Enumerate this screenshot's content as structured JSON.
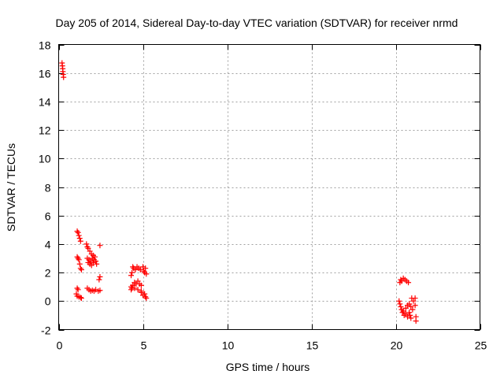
{
  "chart_data": {
    "type": "scatter",
    "title": "Day 205 of 2014, Sidereal Day-to-day VTEC variation (SDTVAR) for receiver nrmd",
    "xlabel": "GPS time / hours",
    "ylabel": "SDTVAR / TECUs",
    "xlim": [
      0,
      25
    ],
    "ylim": [
      -2,
      18
    ],
    "xticks": [
      0,
      5,
      10,
      15,
      20,
      25
    ],
    "yticks": [
      -2,
      0,
      2,
      4,
      6,
      8,
      10,
      12,
      14,
      16,
      18
    ],
    "grid": true,
    "marker": "plus",
    "color": "#ff0000",
    "series": [
      {
        "name": "SDTVAR",
        "points": [
          [
            0.2,
            16.7
          ],
          [
            0.22,
            16.5
          ],
          [
            0.24,
            16.3
          ],
          [
            0.25,
            16.1
          ],
          [
            0.27,
            15.9
          ],
          [
            0.29,
            15.7
          ],
          [
            1.1,
            4.9
          ],
          [
            1.15,
            4.8
          ],
          [
            1.2,
            4.6
          ],
          [
            1.25,
            4.4
          ],
          [
            1.3,
            4.2
          ],
          [
            1.1,
            3.1
          ],
          [
            1.15,
            3.0
          ],
          [
            1.2,
            2.9
          ],
          [
            1.25,
            2.6
          ],
          [
            1.3,
            2.3
          ],
          [
            1.35,
            2.2
          ],
          [
            1.1,
            0.9
          ],
          [
            1.15,
            0.8
          ],
          [
            1.05,
            0.5
          ],
          [
            1.1,
            0.35
          ],
          [
            1.2,
            0.3
          ],
          [
            1.3,
            0.25
          ],
          [
            1.35,
            0.2
          ],
          [
            1.65,
            4.0
          ],
          [
            1.7,
            3.8
          ],
          [
            1.75,
            3.7
          ],
          [
            1.85,
            3.5
          ],
          [
            1.95,
            3.3
          ],
          [
            2.05,
            3.2
          ],
          [
            1.7,
            3.0
          ],
          [
            1.8,
            2.9
          ],
          [
            1.9,
            2.8
          ],
          [
            2.0,
            3.0
          ],
          [
            2.1,
            2.9
          ],
          [
            2.2,
            2.8
          ],
          [
            2.25,
            2.6
          ],
          [
            1.75,
            2.7
          ],
          [
            1.85,
            2.6
          ],
          [
            1.95,
            2.5
          ],
          [
            2.05,
            2.7
          ],
          [
            2.15,
            3.1
          ],
          [
            1.7,
            0.9
          ],
          [
            1.8,
            0.8
          ],
          [
            1.9,
            0.7
          ],
          [
            2.0,
            0.75
          ],
          [
            2.1,
            0.7
          ],
          [
            2.2,
            0.8
          ],
          [
            2.35,
            0.7
          ],
          [
            2.45,
            0.75
          ],
          [
            2.45,
            3.9
          ],
          [
            2.45,
            1.7
          ],
          [
            2.4,
            1.5
          ],
          [
            4.3,
            1.8
          ],
          [
            4.35,
            2.0
          ],
          [
            4.4,
            2.4
          ],
          [
            4.45,
            2.3
          ],
          [
            4.55,
            2.2
          ],
          [
            4.65,
            2.4
          ],
          [
            4.75,
            2.3
          ],
          [
            4.85,
            2.2
          ],
          [
            4.3,
            1.0
          ],
          [
            4.35,
            0.9
          ],
          [
            4.4,
            1.1
          ],
          [
            4.5,
            1.3
          ],
          [
            4.6,
            1.2
          ],
          [
            4.7,
            1.4
          ],
          [
            4.8,
            1.2
          ],
          [
            4.9,
            1.1
          ],
          [
            4.3,
            0.8
          ],
          [
            4.5,
            0.9
          ],
          [
            4.7,
            0.8
          ],
          [
            4.9,
            0.7
          ],
          [
            5.0,
            2.4
          ],
          [
            5.05,
            2.1
          ],
          [
            5.1,
            2.0
          ],
          [
            5.15,
            2.3
          ],
          [
            5.2,
            1.9
          ],
          [
            4.9,
            0.6
          ],
          [
            5.0,
            0.4
          ],
          [
            5.1,
            0.5
          ],
          [
            5.15,
            0.3
          ],
          [
            5.2,
            0.2
          ],
          [
            20.25,
            1.3
          ],
          [
            20.3,
            1.5
          ],
          [
            20.35,
            1.4
          ],
          [
            20.45,
            1.6
          ],
          [
            20.55,
            1.5
          ],
          [
            20.65,
            1.4
          ],
          [
            20.75,
            1.3
          ],
          [
            20.2,
            0.0
          ],
          [
            20.25,
            -0.2
          ],
          [
            20.3,
            -0.4
          ],
          [
            20.35,
            -0.6
          ],
          [
            20.4,
            -0.8
          ],
          [
            20.45,
            -0.7
          ],
          [
            20.5,
            -1.0
          ],
          [
            20.6,
            -0.9
          ],
          [
            20.7,
            -1.1
          ],
          [
            20.8,
            -0.8
          ],
          [
            20.85,
            -1.0
          ],
          [
            20.9,
            -1.2
          ],
          [
            20.6,
            -0.5
          ],
          [
            20.7,
            -0.3
          ],
          [
            20.8,
            -0.2
          ],
          [
            20.9,
            -0.4
          ],
          [
            21.0,
            -0.6
          ],
          [
            20.95,
            0.2
          ],
          [
            21.05,
            0.0
          ],
          [
            21.15,
            0.2
          ],
          [
            21.15,
            -0.3
          ],
          [
            21.2,
            -1.1
          ],
          [
            21.2,
            -1.4
          ]
        ]
      }
    ]
  }
}
